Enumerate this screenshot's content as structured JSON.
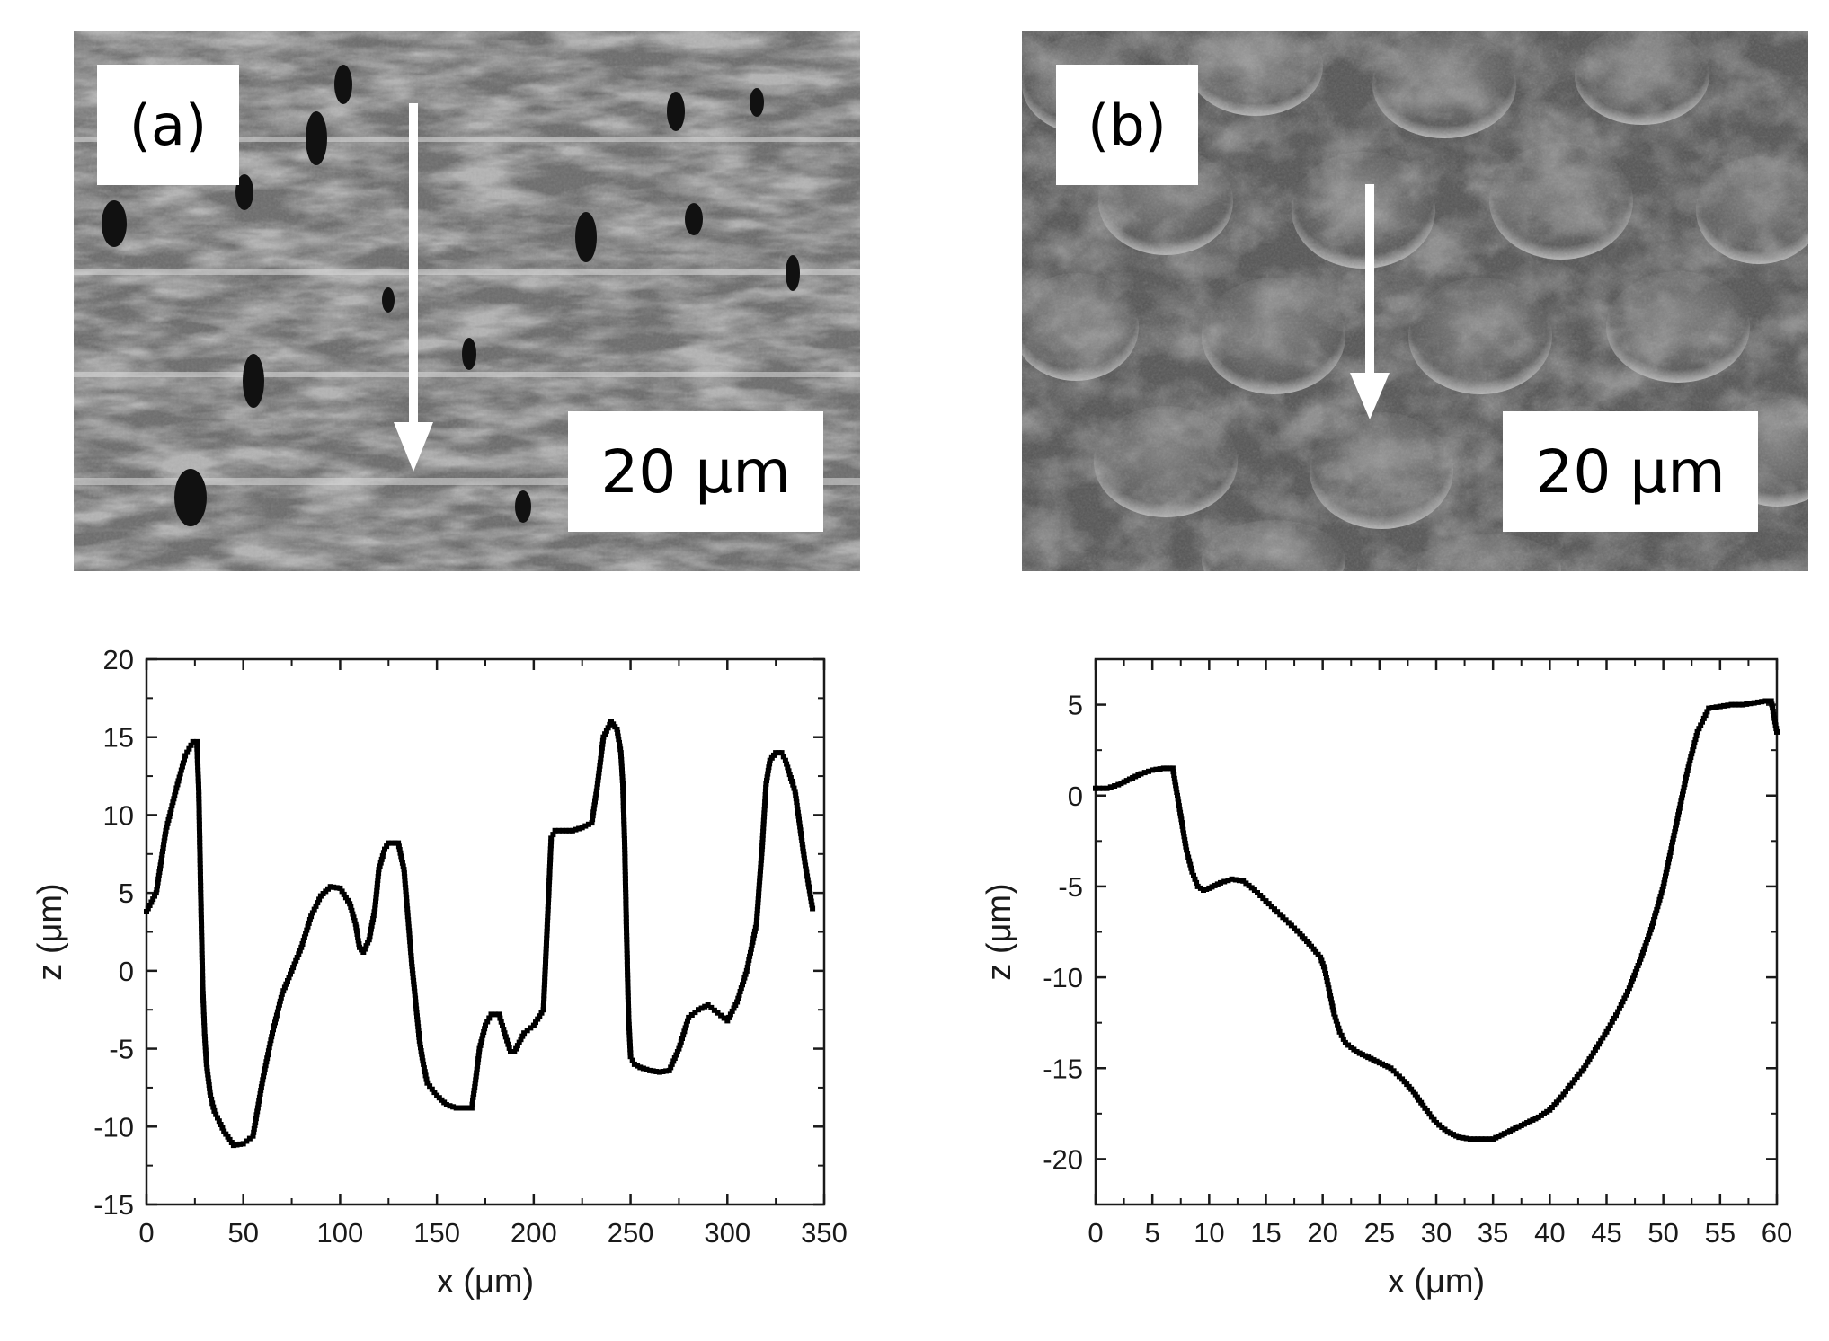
{
  "panels": [
    {
      "id": "a",
      "label": "(a)",
      "scale_bar": "20 μm"
    },
    {
      "id": "b",
      "label": "(b)",
      "scale_bar": "20 μm"
    }
  ],
  "colors": {
    "axis": "#1a1a1a",
    "marker": "#000000",
    "arrow": "#ffffff",
    "sem_base": "#6e6e6e"
  },
  "icons": [
    "white-down-arrow-icon"
  ],
  "chart_data": [
    {
      "type": "scatter",
      "title": "",
      "xlabel": "x (μm)",
      "ylabel": "z (μm)",
      "xlim": [
        0,
        350
      ],
      "ylim": [
        -15,
        20
      ],
      "xticks": [
        0,
        50,
        100,
        150,
        200,
        250,
        300,
        350
      ],
      "yticks": [
        -15,
        -10,
        -5,
        0,
        5,
        10,
        15,
        20
      ],
      "grid": false,
      "legend": "none",
      "x": [
        0,
        5,
        10,
        15,
        20,
        24,
        26,
        27,
        28,
        29,
        30,
        31,
        33,
        35,
        40,
        45,
        50,
        55,
        60,
        65,
        70,
        75,
        80,
        85,
        90,
        95,
        100,
        105,
        108,
        110,
        112,
        115,
        118,
        120,
        123,
        125,
        130,
        133,
        135,
        137,
        139,
        141,
        143,
        145,
        150,
        155,
        160,
        165,
        168,
        170,
        172,
        175,
        178,
        182,
        185,
        188,
        190,
        195,
        200,
        205,
        207,
        209,
        211,
        213,
        215,
        220,
        225,
        230,
        233,
        236,
        240,
        243,
        245,
        246,
        247,
        248,
        249,
        250,
        252,
        255,
        260,
        265,
        270,
        275,
        280,
        285,
        290,
        295,
        300,
        305,
        310,
        315,
        318,
        320,
        322,
        325,
        328,
        330,
        335,
        340,
        344
      ],
      "y": [
        3.8,
        5.0,
        9.0,
        11.5,
        13.8,
        14.7,
        14.7,
        11.5,
        5.0,
        -1.0,
        -4.0,
        -6.0,
        -8.0,
        -9.0,
        -10.3,
        -11.2,
        -11.1,
        -10.6,
        -7.0,
        -4.0,
        -1.5,
        0.0,
        1.5,
        3.5,
        4.8,
        5.4,
        5.3,
        4.3,
        3.0,
        1.5,
        1.2,
        2.0,
        4.0,
        6.5,
        7.8,
        8.2,
        8.2,
        6.5,
        3.5,
        0.5,
        -2.0,
        -4.5,
        -6.0,
        -7.2,
        -8.0,
        -8.6,
        -8.8,
        -8.8,
        -8.8,
        -7.0,
        -5.0,
        -3.5,
        -2.8,
        -2.8,
        -4.0,
        -5.2,
        -5.2,
        -4.0,
        -3.5,
        -2.5,
        3.0,
        8.5,
        9.0,
        9.0,
        9.0,
        9.0,
        9.2,
        9.5,
        12.0,
        15.0,
        16.0,
        15.5,
        14.0,
        12.0,
        8.0,
        2.0,
        -3.0,
        -5.5,
        -6.0,
        -6.2,
        -6.4,
        -6.5,
        -6.4,
        -5.0,
        -3.0,
        -2.5,
        -2.2,
        -2.7,
        -3.2,
        -2.0,
        0.0,
        3.0,
        8.0,
        12.0,
        13.5,
        14.0,
        14.0,
        13.5,
        11.5,
        7.0,
        4.0
      ]
    },
    {
      "type": "scatter",
      "title": "",
      "xlabel": "x (μm)",
      "ylabel": "z (μm)",
      "xlim": [
        0,
        60
      ],
      "ylim": [
        -22.5,
        7.5
      ],
      "xticks": [
        0,
        5,
        10,
        15,
        20,
        25,
        30,
        35,
        40,
        45,
        50,
        55,
        60
      ],
      "yticks": [
        -20,
        -15,
        -10,
        -5,
        0,
        5
      ],
      "grid": false,
      "legend": "none",
      "x": [
        0,
        1,
        2,
        3,
        4,
        5,
        6,
        6.8,
        7.2,
        7.6,
        8,
        8.5,
        9,
        9.5,
        10,
        11,
        12,
        13,
        14,
        15,
        16,
        17,
        18,
        19,
        19.8,
        20.2,
        20.6,
        21,
        21.5,
        22,
        23,
        24,
        25,
        26,
        27,
        28,
        29,
        30,
        31,
        32,
        33,
        34,
        35,
        36,
        37,
        38,
        39,
        40,
        41,
        42,
        43,
        44,
        45,
        46,
        47,
        48,
        49,
        50,
        51,
        52,
        52.5,
        53,
        54,
        55,
        56,
        57,
        58,
        59,
        59.5,
        60
      ],
      "y": [
        0.4,
        0.4,
        0.6,
        0.9,
        1.2,
        1.4,
        1.5,
        1.5,
        0.0,
        -1.5,
        -3.0,
        -4.2,
        -5.0,
        -5.2,
        -5.1,
        -4.8,
        -4.6,
        -4.7,
        -5.2,
        -5.8,
        -6.4,
        -7.0,
        -7.6,
        -8.3,
        -8.9,
        -9.6,
        -10.8,
        -12.0,
        -13.0,
        -13.6,
        -14.1,
        -14.4,
        -14.7,
        -15.0,
        -15.6,
        -16.3,
        -17.2,
        -18.0,
        -18.5,
        -18.8,
        -18.9,
        -18.9,
        -18.9,
        -18.6,
        -18.3,
        -18.0,
        -17.7,
        -17.3,
        -16.6,
        -15.8,
        -15.0,
        -14.0,
        -13.0,
        -11.9,
        -10.6,
        -9.0,
        -7.2,
        -5.0,
        -2.0,
        1.0,
        2.3,
        3.5,
        4.8,
        4.9,
        5.0,
        5.0,
        5.1,
        5.2,
        5.2,
        3.5
      ]
    }
  ]
}
